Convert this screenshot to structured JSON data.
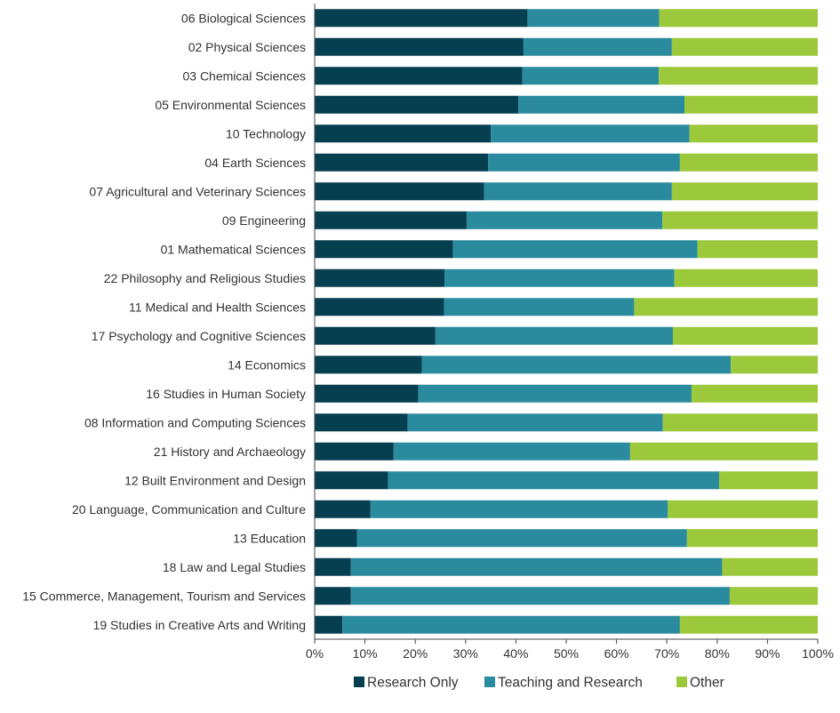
{
  "chart_data": {
    "type": "bar",
    "orientation": "horizontal",
    "stacked": true,
    "title": "",
    "xlabel": "",
    "ylabel": "",
    "xlim": [
      0,
      100
    ],
    "grid": false,
    "legend_position": "bottom",
    "tick_labels": [
      "0%",
      "10%",
      "20%",
      "30%",
      "40%",
      "50%",
      "60%",
      "70%",
      "80%",
      "90%",
      "100%"
    ],
    "categories": [
      "06 Biological Sciences",
      "02 Physical Sciences",
      "03 Chemical Sciences",
      "05 Environmental Sciences",
      "10 Technology",
      "04 Earth Sciences",
      "07 Agricultural and Veterinary Sciences",
      "09 Engineering",
      "01 Mathematical Sciences",
      "22 Philosophy and Religious Studies",
      "11 Medical and Health Sciences",
      "17 Psychology and Cognitive Sciences",
      "14 Economics",
      "16 Studies in Human Society",
      "08 Information and Computing Sciences",
      "21 History and Archaeology",
      "12 Built Environment and Design",
      "20 Language, Communication and Culture",
      "13 Education",
      "18 Law and Legal Studies",
      "15 Commerce, Management, Tourism and Services",
      "19 Studies in Creative Arts and Writing"
    ],
    "series": [
      {
        "name": "Research Only",
        "color": "#063f50",
        "values": [
          42.3,
          41.5,
          41.3,
          40.5,
          35.0,
          34.5,
          33.7,
          30.2,
          27.5,
          25.8,
          25.7,
          24.0,
          21.3,
          20.6,
          18.5,
          15.7,
          14.6,
          11.1,
          8.4,
          7.2,
          7.2,
          5.5
        ]
      },
      {
        "name": "Teaching and Research",
        "color": "#2b8b9e",
        "values": [
          26.2,
          29.5,
          27.1,
          33.0,
          39.5,
          38.1,
          37.3,
          38.9,
          48.6,
          45.7,
          37.8,
          47.2,
          61.4,
          54.3,
          50.7,
          47.0,
          65.8,
          59.1,
          65.6,
          73.8,
          75.3,
          67.1
        ]
      },
      {
        "name": "Other",
        "color": "#9cc93b",
        "values": [
          31.5,
          29.0,
          31.6,
          26.5,
          25.5,
          27.4,
          29.0,
          30.9,
          23.9,
          28.5,
          36.5,
          28.8,
          17.3,
          25.1,
          30.8,
          37.3,
          19.6,
          29.8,
          26.0,
          19.0,
          17.5,
          27.4
        ]
      }
    ]
  }
}
